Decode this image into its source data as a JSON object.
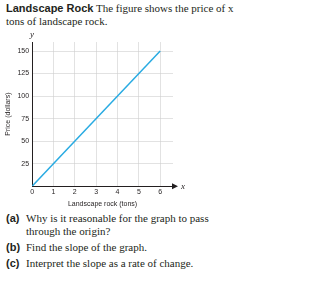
{
  "header": {
    "title": "Landscape Rock",
    "text": "The figure shows the price of x tons of landscape rock."
  },
  "chart_data": {
    "type": "line",
    "x": [
      0,
      6
    ],
    "values": [
      0,
      150
    ],
    "color": "#29abe2",
    "xlabel": "Landscape rock (tons)",
    "ylabel": "Price (dollars)",
    "x_axis_name": "x",
    "y_axis_name": "y",
    "xlim": [
      0,
      6.6
    ],
    "ylim": [
      0,
      160
    ],
    "xticks": [
      0,
      1,
      2,
      3,
      4,
      5,
      6
    ],
    "yticks": [
      25,
      50,
      75,
      100,
      125,
      150
    ],
    "grid": true
  },
  "questions": [
    {
      "label": "(a)",
      "text": "Why is it reasonable for the graph to pass through the origin?"
    },
    {
      "label": "(b)",
      "text": "Find the slope of the graph."
    },
    {
      "label": "(c)",
      "text": "Interpret the slope as a rate of change."
    }
  ]
}
